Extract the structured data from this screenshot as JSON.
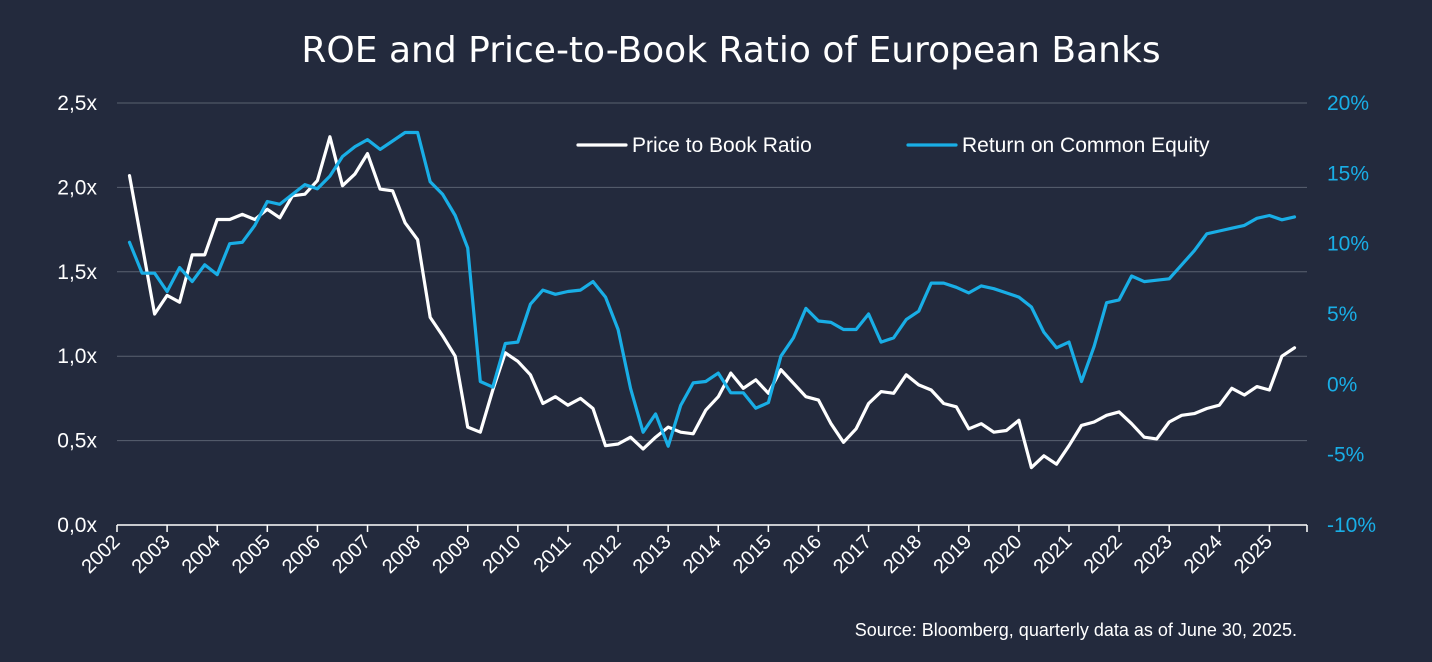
{
  "chart_data": {
    "type": "line",
    "title": "ROE and Price-to-Book Ratio of European Banks",
    "source": "Source: Bloomberg, quarterly data as of June 30, 2025.",
    "x_start": 2002.0,
    "x_end": 2025.75,
    "x_step": 0.25,
    "x_ticks": [
      2002,
      2003,
      2004,
      2005,
      2006,
      2007,
      2008,
      2009,
      2010,
      2011,
      2012,
      2013,
      2014,
      2015,
      2016,
      2017,
      2018,
      2019,
      2020,
      2021,
      2022,
      2023,
      2024,
      2025
    ],
    "y_left": {
      "ylim": [
        0,
        2.5
      ],
      "ticks": [
        0,
        0.5,
        1.0,
        1.5,
        2.0,
        2.5
      ],
      "tick_labels": [
        "0,0x",
        "0,5x",
        "1,0x",
        "1,5x",
        "2,0x",
        "2,5x"
      ]
    },
    "y_right": {
      "ylim": [
        -10,
        20
      ],
      "ticks": [
        -10,
        -5,
        0,
        5,
        10,
        15,
        20
      ],
      "tick_labels": [
        "-10%",
        "-5%",
        "0%",
        "5%",
        "10%",
        "15%",
        "20%"
      ]
    },
    "legend_position": "top-right",
    "series": [
      {
        "name": "Price to Book Ratio",
        "axis": "left",
        "color": "#ffffff",
        "start": 2002.25,
        "values": [
          2.07,
          1.66,
          1.25,
          1.36,
          1.32,
          1.6,
          1.6,
          1.81,
          1.81,
          1.84,
          1.81,
          1.87,
          1.82,
          1.95,
          1.96,
          2.04,
          2.3,
          2.01,
          2.08,
          2.2,
          1.99,
          1.98,
          1.79,
          1.69,
          1.23,
          1.12,
          1.0,
          0.58,
          0.55,
          0.8,
          1.02,
          0.97,
          0.89,
          0.72,
          0.76,
          0.71,
          0.75,
          0.69,
          0.47,
          0.48,
          0.52,
          0.45,
          0.52,
          0.58,
          0.55,
          0.54,
          0.68,
          0.76,
          0.9,
          0.81,
          0.86,
          0.78,
          0.92,
          0.84,
          0.76,
          0.74,
          0.6,
          0.49,
          0.57,
          0.72,
          0.79,
          0.78,
          0.89,
          0.83,
          0.8,
          0.72,
          0.7,
          0.57,
          0.6,
          0.55,
          0.56,
          0.62,
          0.34,
          0.41,
          0.36,
          0.47,
          0.59,
          0.61,
          0.65,
          0.67,
          0.6,
          0.52,
          0.51,
          0.61,
          0.65,
          0.66,
          0.69,
          0.71,
          0.81,
          0.77,
          0.82,
          0.8,
          1.0,
          1.05
        ]
      },
      {
        "name": "Return on Common Equity",
        "axis": "right",
        "color": "#19aee6",
        "start": 2002.25,
        "values": [
          10.1,
          7.9,
          7.9,
          6.6,
          8.3,
          7.3,
          8.5,
          7.8,
          10.0,
          10.1,
          11.3,
          13.0,
          12.8,
          13.5,
          14.2,
          13.9,
          14.8,
          16.2,
          16.9,
          17.4,
          16.7,
          17.3,
          17.9,
          17.9,
          14.4,
          13.5,
          12.0,
          9.7,
          0.2,
          -0.2,
          2.9,
          3.0,
          5.7,
          6.7,
          6.4,
          6.6,
          6.7,
          7.3,
          6.2,
          3.9,
          -0.3,
          -3.4,
          -2.1,
          -4.4,
          -1.5,
          0.1,
          0.2,
          0.8,
          -0.6,
          -0.6,
          -1.7,
          -1.3,
          2.0,
          3.3,
          5.4,
          4.5,
          4.4,
          3.9,
          3.9,
          5.0,
          3.0,
          3.3,
          4.6,
          5.2,
          7.2,
          7.2,
          6.9,
          6.5,
          7.0,
          6.8,
          6.5,
          6.2,
          5.5,
          3.7,
          2.6,
          3.0,
          0.2,
          2.7,
          5.8,
          6.0,
          7.7,
          7.3,
          7.4,
          7.5,
          8.5,
          9.5,
          10.7,
          10.9,
          11.1,
          11.3,
          11.8,
          12.0,
          11.7,
          11.9
        ]
      }
    ]
  }
}
